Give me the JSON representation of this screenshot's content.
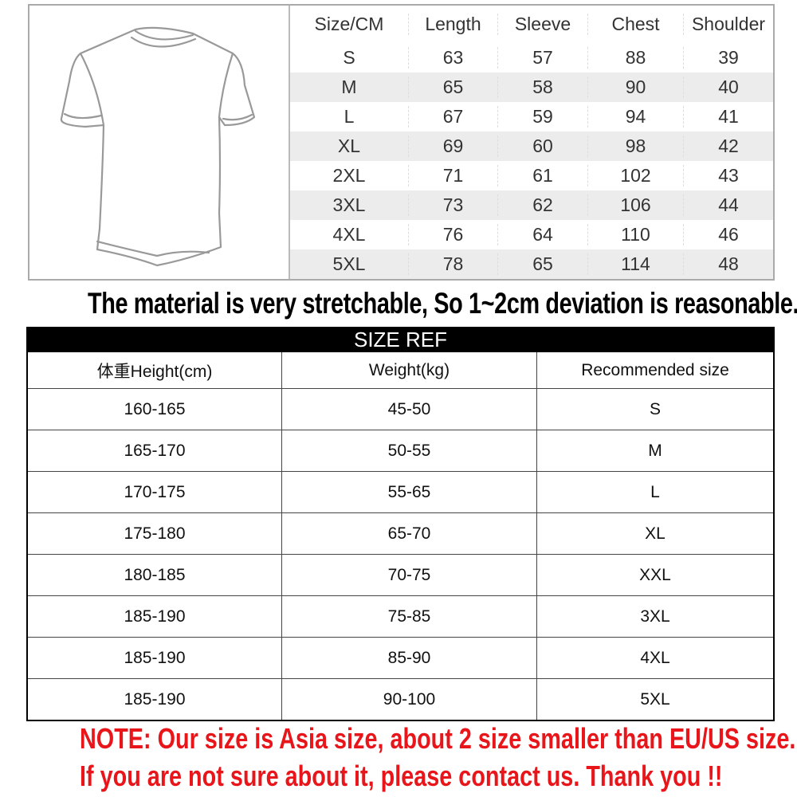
{
  "measurements": {
    "headers": [
      "Size/CM",
      "Length",
      "Sleeve",
      "Chest",
      "Shoulder"
    ],
    "rows": [
      [
        "S",
        "63",
        "57",
        "88",
        "39"
      ],
      [
        "M",
        "65",
        "58",
        "90",
        "40"
      ],
      [
        "L",
        "67",
        "59",
        "94",
        "41"
      ],
      [
        "XL",
        "69",
        "60",
        "98",
        "42"
      ],
      [
        "2XL",
        "71",
        "61",
        "102",
        "43"
      ],
      [
        "3XL",
        "73",
        "62",
        "106",
        "44"
      ],
      [
        "4XL",
        "76",
        "64",
        "110",
        "46"
      ],
      [
        "5XL",
        "78",
        "65",
        "114",
        "48"
      ]
    ]
  },
  "banner": "The material is very stretchable, So 1~2cm deviation is reasonable.",
  "size_ref": {
    "title": "SIZE REF",
    "headers": [
      "体重Height(cm)",
      "Weight(kg)",
      "Recommended size"
    ],
    "rows": [
      [
        "160-165",
        "45-50",
        "S"
      ],
      [
        "165-170",
        "50-55",
        "M"
      ],
      [
        "170-175",
        "55-65",
        "L"
      ],
      [
        "175-180",
        "65-70",
        "XL"
      ],
      [
        "180-185",
        "70-75",
        "XXL"
      ],
      [
        "185-190",
        "75-85",
        "3XL"
      ],
      [
        "185-190",
        "85-90",
        "4XL"
      ],
      [
        "185-190",
        "90-100",
        "5XL"
      ]
    ]
  },
  "notes": [
    "NOTE:  Our size is Asia size, about 2 size smaller than EU/US size.",
    "If you are not sure about it, please contact us. Thank you !!"
  ],
  "colors": {
    "note": "#e8161b",
    "header_bg": "#000000",
    "alt_row": "#ececec"
  }
}
